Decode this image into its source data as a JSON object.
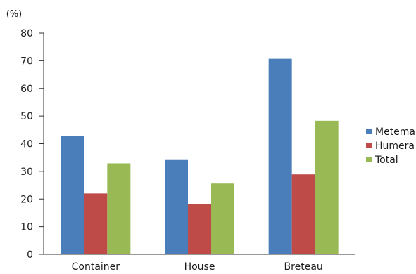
{
  "chart_data": {
    "type": "bar",
    "title": "",
    "unit_label": "(%)",
    "xlabel": "",
    "ylabel": "",
    "categories": [
      "Container",
      "House",
      "Breteau"
    ],
    "series": [
      {
        "name": "Metema",
        "color": "#4a7ebb",
        "values": [
          42.8,
          34.1,
          70.7
        ]
      },
      {
        "name": "Humera",
        "color": "#be4b48",
        "values": [
          22.0,
          18.1,
          28.9
        ]
      },
      {
        "name": "Total",
        "color": "#98b954",
        "values": [
          32.9,
          25.6,
          48.3
        ]
      }
    ],
    "ylim": [
      0,
      80
    ],
    "yticks": [
      0,
      10,
      20,
      30,
      40,
      50,
      60,
      70,
      80
    ],
    "grid": false,
    "legend_position": "right"
  }
}
